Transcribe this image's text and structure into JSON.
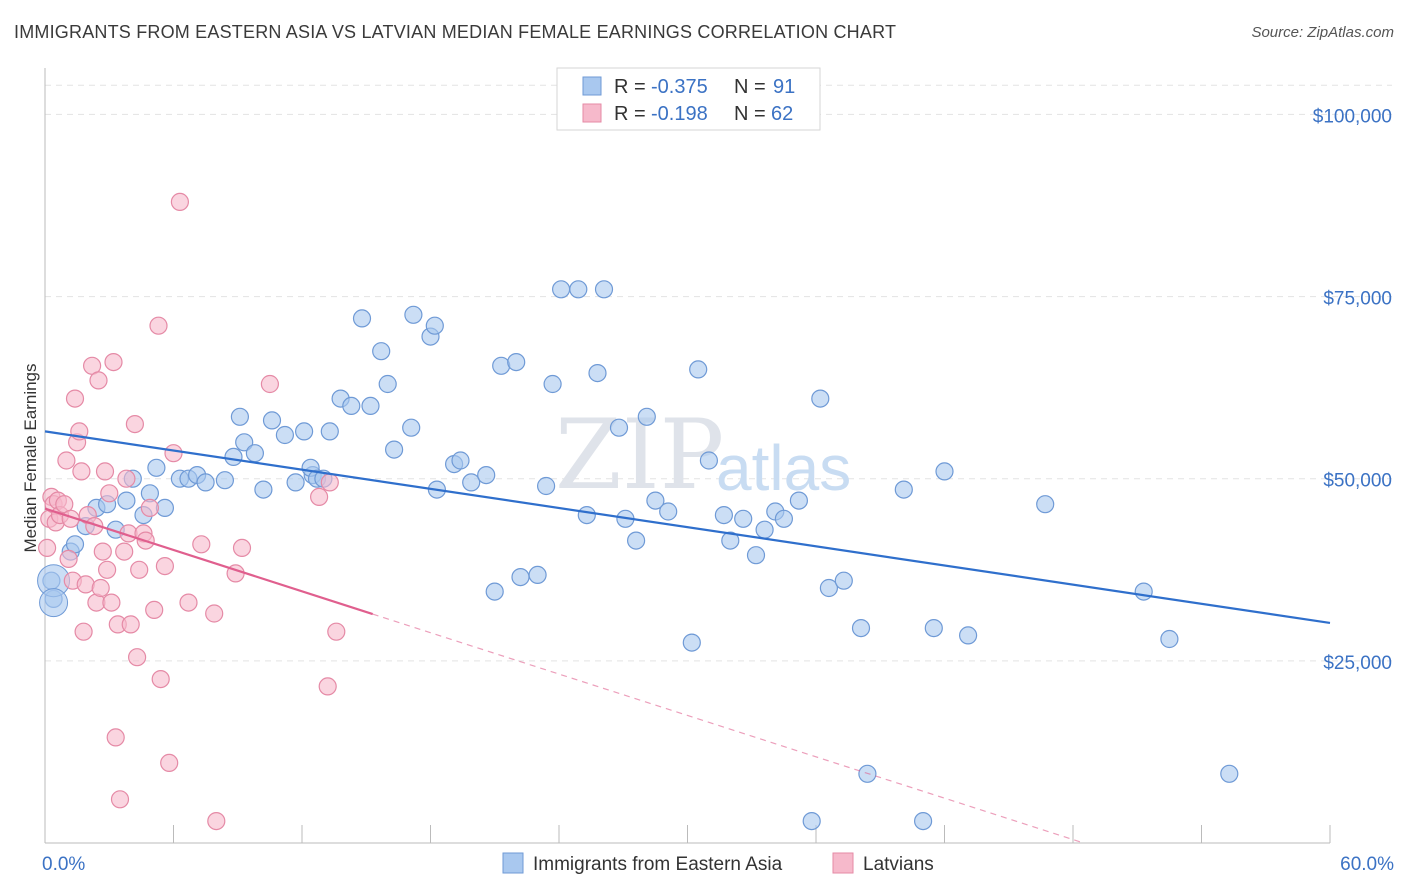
{
  "title": "IMMIGRANTS FROM EASTERN ASIA VS LATVIAN MEDIAN FEMALE EARNINGS CORRELATION CHART",
  "source": "Source: ZipAtlas.com",
  "watermark": {
    "zip": "ZIP",
    "atlas": "atlas"
  },
  "legend": {
    "r_label": "R =",
    "n_label": "N =",
    "series": [
      {
        "r": "-0.375",
        "n": "91",
        "color": "#a9c8ef",
        "stroke": "#6f9ad6"
      },
      {
        "r": "-0.198",
        "n": "62",
        "color": "#f6b9cb",
        "stroke": "#e58aa6"
      }
    ]
  },
  "chart_data": {
    "type": "scatter",
    "title": "IMMIGRANTS FROM EASTERN ASIA VS LATVIAN MEDIAN FEMALE EARNINGS CORRELATION CHART",
    "xlabel": "",
    "ylabel": "Median Female Earnings",
    "xlim": [
      0,
      60
    ],
    "ylim": [
      0,
      105000
    ],
    "x_tick_labels": {
      "min": "0.0%",
      "max": "60.0%"
    },
    "y_ticks": [
      {
        "value": 25000,
        "label": "$25,000"
      },
      {
        "value": 50000,
        "label": "$50,000"
      },
      {
        "value": 75000,
        "label": "$75,000"
      },
      {
        "value": 100000,
        "label": "$100,000"
      }
    ],
    "series": [
      {
        "name": "Immigrants from Eastern Asia",
        "color": "#a9c8ef",
        "stroke": "#6f9ad6",
        "trend": {
          "x0": 0,
          "y0": 56500,
          "x1": 60,
          "y1": 30200,
          "solid_until": 60,
          "color": "#2f6fcc"
        },
        "points": [
          [
            0.3,
            36000
          ],
          [
            0.4,
            33500
          ],
          [
            1.2,
            40000
          ],
          [
            1.4,
            41000
          ],
          [
            1.9,
            43500
          ],
          [
            2.4,
            46000
          ],
          [
            2.9,
            46500
          ],
          [
            3.3,
            43000
          ],
          [
            3.8,
            47000
          ],
          [
            4.1,
            50000
          ],
          [
            4.6,
            45000
          ],
          [
            4.9,
            48000
          ],
          [
            5.6,
            46000
          ],
          [
            5.2,
            51500
          ],
          [
            6.3,
            50000
          ],
          [
            6.7,
            50000
          ],
          [
            7.1,
            50500
          ],
          [
            7.5,
            49500
          ],
          [
            8.4,
            49800
          ],
          [
            8.8,
            53000
          ],
          [
            9.3,
            55000
          ],
          [
            9.8,
            53500
          ],
          [
            9.1,
            58500
          ],
          [
            10.2,
            48500
          ],
          [
            10.6,
            58000
          ],
          [
            11.2,
            56000
          ],
          [
            11.7,
            49500
          ],
          [
            12.1,
            56500
          ],
          [
            12.5,
            50500
          ],
          [
            12.4,
            51500
          ],
          [
            12.7,
            50000
          ],
          [
            13.0,
            50000
          ],
          [
            13.3,
            56500
          ],
          [
            13.8,
            61000
          ],
          [
            14.3,
            60000
          ],
          [
            14.8,
            72000
          ],
          [
            15.2,
            60000
          ],
          [
            16.0,
            63000
          ],
          [
            16.3,
            54000
          ],
          [
            15.7,
            67500
          ],
          [
            17.1,
            57000
          ],
          [
            17.2,
            72500
          ],
          [
            18.0,
            69500
          ],
          [
            18.2,
            71000
          ],
          [
            18.3,
            48500
          ],
          [
            19.1,
            52000
          ],
          [
            19.4,
            52500
          ],
          [
            19.9,
            49500
          ],
          [
            20.6,
            50500
          ],
          [
            21.0,
            34500
          ],
          [
            21.3,
            65500
          ],
          [
            22.0,
            66000
          ],
          [
            22.2,
            36500
          ],
          [
            23.0,
            36800
          ],
          [
            23.4,
            49000
          ],
          [
            23.7,
            63000
          ],
          [
            24.1,
            76000
          ],
          [
            24.9,
            76000
          ],
          [
            25.3,
            45000
          ],
          [
            25.8,
            64500
          ],
          [
            26.1,
            76000
          ],
          [
            26.8,
            57000
          ],
          [
            27.1,
            44500
          ],
          [
            27.6,
            41500
          ],
          [
            28.1,
            58500
          ],
          [
            28.5,
            47000
          ],
          [
            29.1,
            45500
          ],
          [
            30.2,
            27500
          ],
          [
            30.5,
            65000
          ],
          [
            31.0,
            52500
          ],
          [
            31.7,
            45000
          ],
          [
            32.0,
            41500
          ],
          [
            32.6,
            44500
          ],
          [
            33.2,
            39500
          ],
          [
            33.6,
            43000
          ],
          [
            34.1,
            45500
          ],
          [
            34.5,
            44500
          ],
          [
            35.2,
            47000
          ],
          [
            35.8,
            3000
          ],
          [
            36.2,
            61000
          ],
          [
            36.6,
            35000
          ],
          [
            37.3,
            36000
          ],
          [
            38.1,
            29500
          ],
          [
            38.4,
            9500
          ],
          [
            40.1,
            48500
          ],
          [
            41.0,
            3000
          ],
          [
            41.5,
            29500
          ],
          [
            42.0,
            51000
          ],
          [
            43.1,
            28500
          ],
          [
            46.7,
            46500
          ],
          [
            51.3,
            34500
          ],
          [
            52.5,
            28000
          ],
          [
            55.3,
            9500
          ]
        ]
      },
      {
        "name": "Latvians",
        "color": "#f6b9cb",
        "stroke": "#e58aa6",
        "trend": {
          "x0": 0,
          "y0": 45900,
          "x1": 48.5,
          "y1": 0,
          "solid_until": 15.3,
          "color": "#e05f8e"
        },
        "points": [
          [
            0.1,
            40500
          ],
          [
            0.2,
            44500
          ],
          [
            0.3,
            47500
          ],
          [
            0.4,
            46500
          ],
          [
            0.5,
            44000
          ],
          [
            0.6,
            47000
          ],
          [
            0.7,
            45000
          ],
          [
            0.9,
            46500
          ],
          [
            1.0,
            52500
          ],
          [
            1.1,
            39000
          ],
          [
            1.2,
            44500
          ],
          [
            1.3,
            36000
          ],
          [
            1.4,
            61000
          ],
          [
            1.5,
            55000
          ],
          [
            1.6,
            56500
          ],
          [
            1.7,
            51000
          ],
          [
            1.8,
            29000
          ],
          [
            1.9,
            35500
          ],
          [
            2.0,
            45000
          ],
          [
            2.2,
            65500
          ],
          [
            2.3,
            43500
          ],
          [
            2.4,
            33000
          ],
          [
            2.5,
            63500
          ],
          [
            2.6,
            35000
          ],
          [
            2.7,
            40000
          ],
          [
            2.8,
            51000
          ],
          [
            2.9,
            37500
          ],
          [
            3.0,
            48000
          ],
          [
            3.1,
            33000
          ],
          [
            3.2,
            66000
          ],
          [
            3.3,
            14500
          ],
          [
            3.4,
            30000
          ],
          [
            3.5,
            6000
          ],
          [
            3.7,
            40000
          ],
          [
            3.8,
            50000
          ],
          [
            3.9,
            42500
          ],
          [
            4.0,
            30000
          ],
          [
            4.2,
            57500
          ],
          [
            4.3,
            25500
          ],
          [
            4.4,
            37500
          ],
          [
            4.6,
            42500
          ],
          [
            4.7,
            41500
          ],
          [
            4.9,
            46000
          ],
          [
            5.1,
            32000
          ],
          [
            5.3,
            71000
          ],
          [
            5.4,
            22500
          ],
          [
            5.6,
            38000
          ],
          [
            5.8,
            11000
          ],
          [
            6.0,
            53500
          ],
          [
            6.3,
            88000
          ],
          [
            6.7,
            33000
          ],
          [
            7.3,
            41000
          ],
          [
            7.9,
            31500
          ],
          [
            8.0,
            3000
          ],
          [
            8.9,
            37000
          ],
          [
            9.2,
            40500
          ],
          [
            10.5,
            63000
          ],
          [
            12.8,
            47500
          ],
          [
            13.3,
            49500
          ],
          [
            13.2,
            21500
          ],
          [
            13.6,
            29000
          ]
        ]
      }
    ],
    "legend_position": "top-center"
  },
  "bottom_legend": [
    {
      "label": "Immigrants from Eastern Asia"
    },
    {
      "label": "Latvians"
    }
  ]
}
